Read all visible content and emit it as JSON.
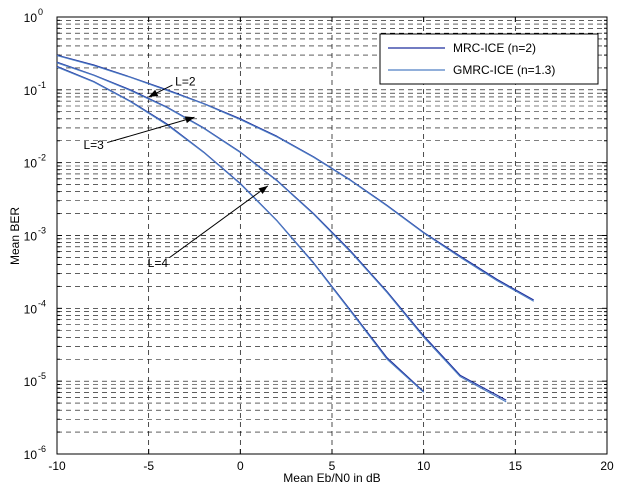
{
  "chart_data": {
    "type": "line",
    "xlabel": "Mean Eb/N0 in dB",
    "ylabel": "Mean BER",
    "xlim": [
      -10,
      20
    ],
    "ylim": [
      1e-06,
      1
    ],
    "yscale": "log",
    "grid": true,
    "legend_position": "top-right",
    "x_ticks": [
      "-10",
      "-5",
      "0",
      "5",
      "10",
      "15",
      "20"
    ],
    "y_ticks": [
      {
        "base": "10",
        "exp": "0",
        "value": 1
      },
      {
        "base": "10",
        "exp": "-1",
        "value": 0.1
      },
      {
        "base": "10",
        "exp": "-2",
        "value": 0.01
      },
      {
        "base": "10",
        "exp": "-3",
        "value": 0.001
      },
      {
        "base": "10",
        "exp": "-4",
        "value": 0.0001
      },
      {
        "base": "10",
        "exp": "-5",
        "value": 1e-05
      },
      {
        "base": "10",
        "exp": "-6",
        "value": 1e-06
      }
    ],
    "series": [
      {
        "name": "MRC-ICE (n=2)",
        "color": "#1f2f9e",
        "groups": [
          {
            "x": [
              -10,
              -8,
              -6,
              -4,
              -2,
              0,
              2,
              4,
              6,
              8,
              10,
              12,
              14,
              16
            ],
            "y": [
              0.3,
              0.22,
              0.15,
              0.1,
              0.065,
              0.04,
              0.023,
              0.012,
              0.0058,
              0.0026,
              0.0011,
              0.00052,
              0.00025,
              0.00013
            ]
          },
          {
            "x": [
              -10,
              -8,
              -6,
              -4,
              -2,
              0,
              2,
              4,
              6,
              8,
              10,
              12,
              14.5
            ],
            "y": [
              0.24,
              0.16,
              0.1,
              0.058,
              0.03,
              0.014,
              0.0057,
              0.002,
              0.00062,
              0.00017,
              4.2e-05,
              1.2e-05,
              5.5e-06
            ]
          },
          {
            "x": [
              -10,
              -8,
              -6,
              -4,
              -2,
              0,
              2,
              4,
              6,
              8,
              10
            ],
            "y": [
              0.21,
              0.13,
              0.07,
              0.034,
              0.014,
              0.0052,
              0.0016,
              0.00042,
              9.5e-05,
              2.1e-05,
              7.2e-06
            ]
          }
        ]
      },
      {
        "name": "GMRC-ICE (n=1.3)",
        "color": "#4f7fc4",
        "groups": [
          {
            "x": [
              -10,
              -8,
              -6,
              -4,
              -2,
              0,
              2,
              4,
              6,
              8,
              10,
              12,
              14,
              16
            ],
            "y": [
              0.295,
              0.215,
              0.148,
              0.098,
              0.064,
              0.039,
              0.0225,
              0.0118,
              0.0057,
              0.00255,
              0.00108,
              0.0005,
              0.00024,
              0.000125
            ]
          },
          {
            "x": [
              -10,
              -8,
              -6,
              -4,
              -2,
              0,
              2,
              4,
              6,
              8,
              10,
              12,
              14.5
            ],
            "y": [
              0.235,
              0.158,
              0.098,
              0.057,
              0.0295,
              0.0138,
              0.0056,
              0.00195,
              0.0006,
              0.000165,
              4e-05,
              1.15e-05,
              5.2e-06
            ]
          },
          {
            "x": [
              -10,
              -8,
              -6,
              -4,
              -2,
              0,
              2,
              4,
              6,
              8,
              10
            ],
            "y": [
              0.205,
              0.128,
              0.069,
              0.033,
              0.0138,
              0.0051,
              0.00158,
              0.00041,
              9.2e-05,
              2e-05,
              7e-06
            ]
          }
        ]
      }
    ],
    "annotations": [
      {
        "text": "L=2",
        "text_at": [
          -3.0,
          0.13
        ],
        "arrow_to": [
          -5.0,
          0.08
        ]
      },
      {
        "text": "L=3",
        "text_at": [
          -8.0,
          0.0175
        ],
        "arrow_to": [
          -2.5,
          0.042
        ]
      },
      {
        "text": "L=4",
        "text_at": [
          -4.5,
          0.00042
        ],
        "arrow_to": [
          1.5,
          0.0048
        ]
      }
    ]
  }
}
